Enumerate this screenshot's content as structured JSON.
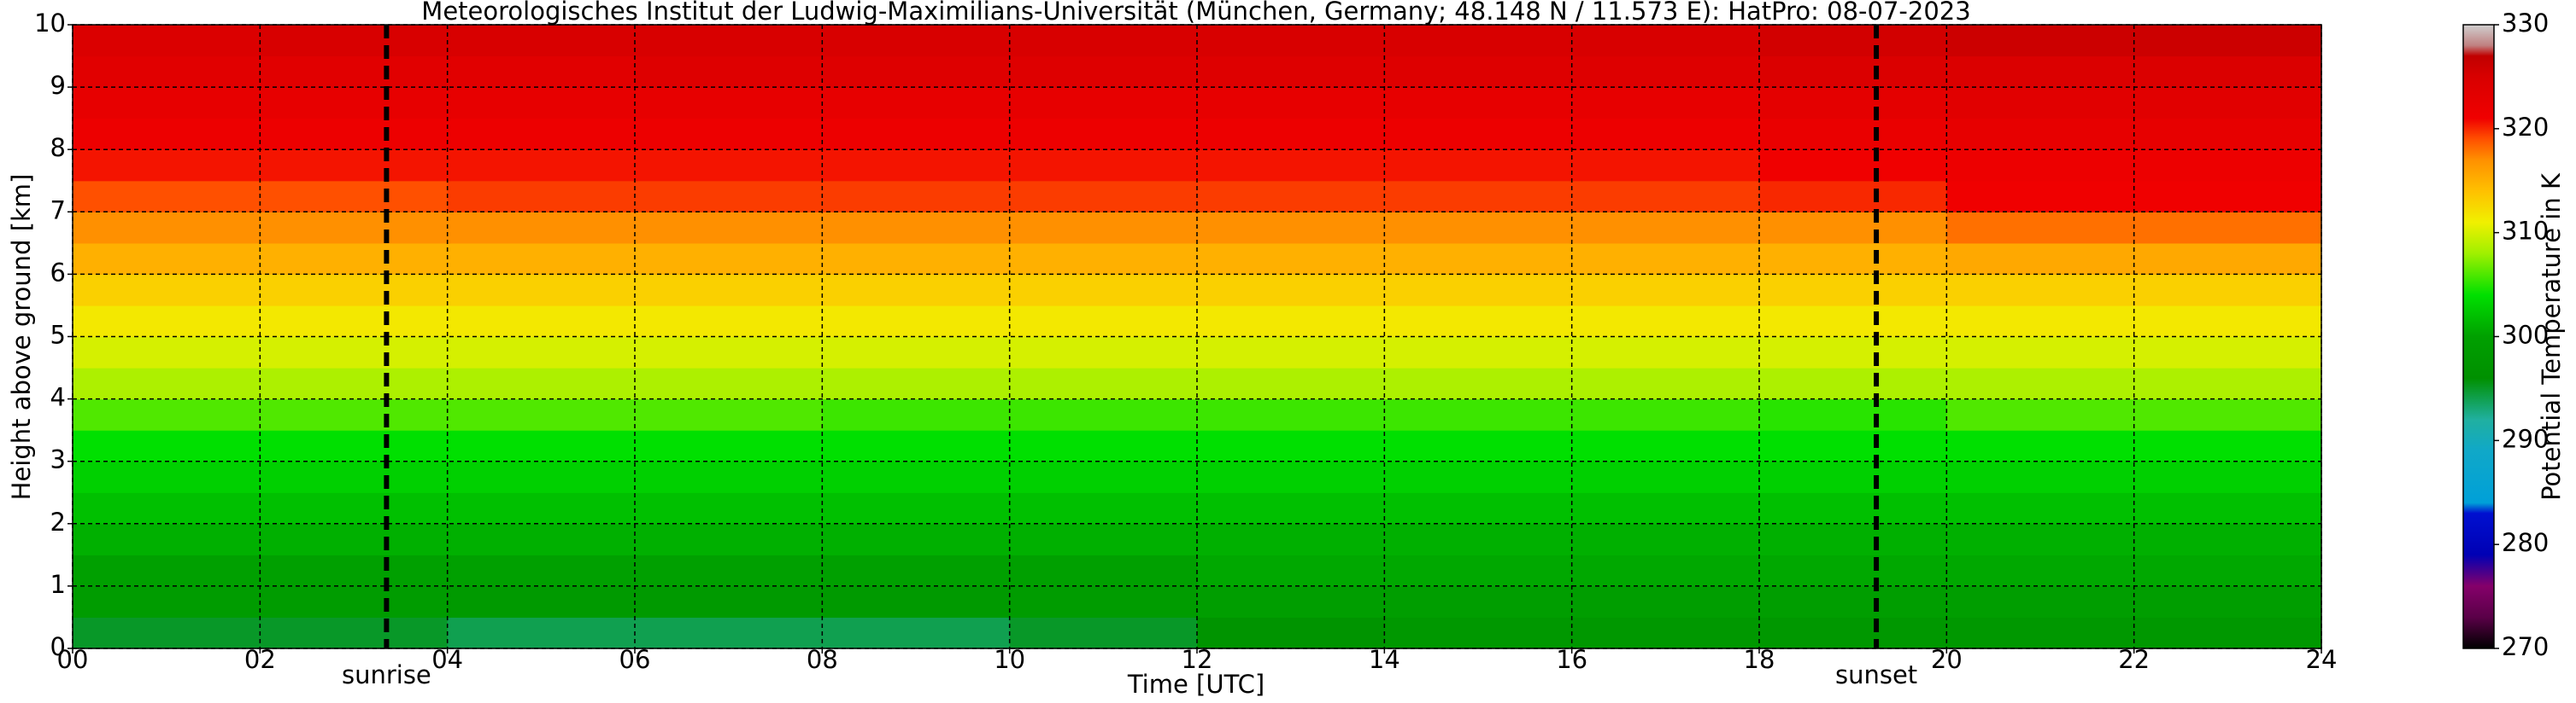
{
  "chart_data": {
    "type": "heatmap",
    "title": "Meteorologisches Institut der Ludwig-Maximilians-Universität (München, Germany; 48.148 N / 11.573 E):    HatPro: 08-07-2023",
    "xlabel": "Time [UTC]",
    "ylabel": "Height above ground [km]",
    "colorbar_label": "Potential Temperature in K",
    "x": [
      1,
      3,
      5,
      7,
      9,
      11,
      13,
      15,
      17,
      19,
      21,
      23
    ],
    "y": [
      0.25,
      0.75,
      1.25,
      1.75,
      2.25,
      2.75,
      3.25,
      3.75,
      4.25,
      4.75,
      5.25,
      5.75,
      6.25,
      6.75,
      7.25,
      7.75,
      8.25,
      8.75,
      9.25,
      9.75
    ],
    "values": [
      [
        295,
        295,
        294,
        294,
        294,
        295,
        297,
        298,
        298,
        298,
        298,
        298
      ],
      [
        299,
        299,
        298.5,
        298.5,
        298.5,
        299,
        299.5,
        299.5,
        299.5,
        299.5,
        299.5,
        299.5
      ],
      [
        300,
        300,
        300,
        300,
        300,
        300,
        300.5,
        300.5,
        300.5,
        300.5,
        300.5,
        300.5
      ],
      [
        301,
        301,
        301,
        301,
        301,
        301,
        301,
        301,
        301,
        301,
        301,
        301
      ],
      [
        302,
        302,
        302,
        302,
        302,
        302,
        302,
        302,
        302,
        302,
        302,
        302
      ],
      [
        303,
        303,
        303,
        303,
        303,
        303,
        303,
        303,
        303,
        303,
        303,
        303
      ],
      [
        304,
        304,
        304,
        304,
        304,
        304,
        304,
        304,
        304,
        304,
        304,
        304
      ],
      [
        306,
        306,
        306,
        306,
        305.5,
        305.5,
        305.5,
        305.5,
        305.5,
        305,
        306,
        306
      ],
      [
        308.5,
        308.5,
        308.5,
        308.5,
        308.5,
        308.5,
        308.5,
        308.5,
        308.5,
        308.5,
        308.5,
        308.5
      ],
      [
        310,
        310,
        310,
        310,
        310,
        310,
        310,
        310,
        310,
        310,
        310,
        310
      ],
      [
        311.5,
        311.5,
        311.5,
        311.5,
        311.5,
        311.5,
        311.5,
        311.5,
        311.5,
        311.5,
        311.5,
        311.5
      ],
      [
        313,
        313,
        313,
        313,
        313,
        313,
        313,
        313,
        313,
        313,
        313,
        313
      ],
      [
        315,
        315,
        315,
        315,
        315,
        315,
        315,
        315,
        315,
        315,
        315.5,
        315.5
      ],
      [
        317,
        317,
        317,
        317,
        317,
        317,
        317,
        317,
        317,
        317,
        318,
        318
      ],
      [
        319,
        319,
        319.5,
        319.5,
        319.5,
        319.5,
        319.5,
        319.5,
        319.5,
        320,
        321,
        321
      ],
      [
        320.5,
        320.5,
        320.5,
        320.5,
        320.5,
        320.5,
        320.5,
        320.5,
        320.5,
        321,
        321.5,
        321.5
      ],
      [
        321.5,
        321.5,
        321.5,
        321.5,
        321.5,
        321.5,
        321.5,
        321.5,
        321.5,
        322,
        322.5,
        322.5
      ],
      [
        322.5,
        322.5,
        322.5,
        322.5,
        322.5,
        322.5,
        322.5,
        322.5,
        322.5,
        323,
        323.5,
        323.5
      ],
      [
        323.5,
        323.5,
        323.5,
        324,
        324,
        324,
        324,
        324,
        324,
        324.5,
        324.5,
        324.5
      ],
      [
        324.5,
        325,
        325,
        325,
        325,
        325,
        325,
        325,
        325,
        325.5,
        326,
        326
      ]
    ],
    "xlim": [
      0,
      24
    ],
    "xticks": [
      {
        "value": 0,
        "label": "00"
      },
      {
        "value": 2,
        "label": "02"
      },
      {
        "value": 4,
        "label": "04"
      },
      {
        "value": 6,
        "label": "06"
      },
      {
        "value": 8,
        "label": "08"
      },
      10,
      12,
      14,
      16,
      18,
      20,
      22,
      24
    ],
    "ylim": [
      0,
      10
    ],
    "yticks": [
      0,
      1,
      2,
      3,
      4,
      5,
      6,
      7,
      8,
      9,
      10
    ],
    "clim": [
      270,
      330
    ],
    "cticks": [
      270,
      280,
      290,
      300,
      310,
      320,
      330
    ],
    "colormap": [
      {
        "value": 270,
        "color": "#000000"
      },
      {
        "value": 273,
        "color": "#5a0048"
      },
      {
        "value": 276,
        "color": "#85006a"
      },
      {
        "value": 279,
        "color": "#0000b4"
      },
      {
        "value": 283,
        "color": "#0010d0"
      },
      {
        "value": 284,
        "color": "#00a0d8"
      },
      {
        "value": 289,
        "color": "#10a8c8"
      },
      {
        "value": 292,
        "color": "#20b0a0"
      },
      {
        "value": 296,
        "color": "#009000"
      },
      {
        "value": 300,
        "color": "#00a000"
      },
      {
        "value": 304,
        "color": "#00e000"
      },
      {
        "value": 308,
        "color": "#a0f000"
      },
      {
        "value": 311,
        "color": "#f0f000"
      },
      {
        "value": 314,
        "color": "#ffc000"
      },
      {
        "value": 317,
        "color": "#ff9000"
      },
      {
        "value": 319,
        "color": "#ff5000"
      },
      {
        "value": 321,
        "color": "#f00000"
      },
      {
        "value": 325,
        "color": "#d80000"
      },
      {
        "value": 327,
        "color": "#c00000"
      },
      {
        "value": 328,
        "color": "#c08080"
      },
      {
        "value": 330,
        "color": "#d0d0d0"
      }
    ],
    "grid": true,
    "vlines": [
      {
        "x": 3.35,
        "label": "sunrise"
      },
      {
        "x": 19.25,
        "label": "sunset"
      }
    ]
  }
}
